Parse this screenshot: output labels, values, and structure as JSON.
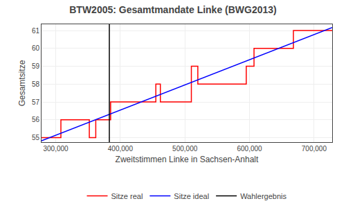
{
  "chart_data": {
    "type": "line",
    "title": "BTW2005: Gesamtmandate Linke (BWG2013)",
    "x_label": "Zweitstimmen Linke in Sachsen-Anhalt",
    "y_label": "Gesamtsitze",
    "xlim": [
      278000,
      728000
    ],
    "ylim": [
      54.75,
      61.35
    ],
    "xticks": [
      {
        "value": 300000,
        "label": "300,000"
      },
      {
        "value": 400000,
        "label": "400,000"
      },
      {
        "value": 500000,
        "label": "500,000"
      },
      {
        "value": 600000,
        "label": "600,000"
      },
      {
        "value": 700000,
        "label": "700,000"
      }
    ],
    "yticks": [
      55,
      56,
      57,
      58,
      59,
      60,
      61
    ],
    "grid": true,
    "legend": "bottom",
    "series": [
      {
        "name": "Sitze real",
        "color": "red",
        "x": [
          278000,
          308000,
          308000,
          352000,
          352000,
          362000,
          362000,
          385000,
          385000,
          420000,
          420000,
          455000,
          455000,
          462000,
          462000,
          510000,
          510000,
          520000,
          520000,
          595000,
          595000,
          607000,
          607000,
          668000,
          668000,
          728000
        ],
        "values": [
          55,
          55,
          56,
          56,
          55,
          55,
          56,
          56,
          57,
          57,
          57,
          57,
          58,
          58,
          57,
          57,
          59,
          59,
          58,
          58,
          59,
          59,
          60,
          60,
          61,
          61
        ]
      },
      {
        "name": "Sitze ideal",
        "color": "blue",
        "x": [
          278000,
          728000
        ],
        "values": [
          54.83,
          61.17
        ]
      },
      {
        "name": "Wahlergebnis",
        "color": "black",
        "type": "vline",
        "x": 383000
      }
    ]
  }
}
